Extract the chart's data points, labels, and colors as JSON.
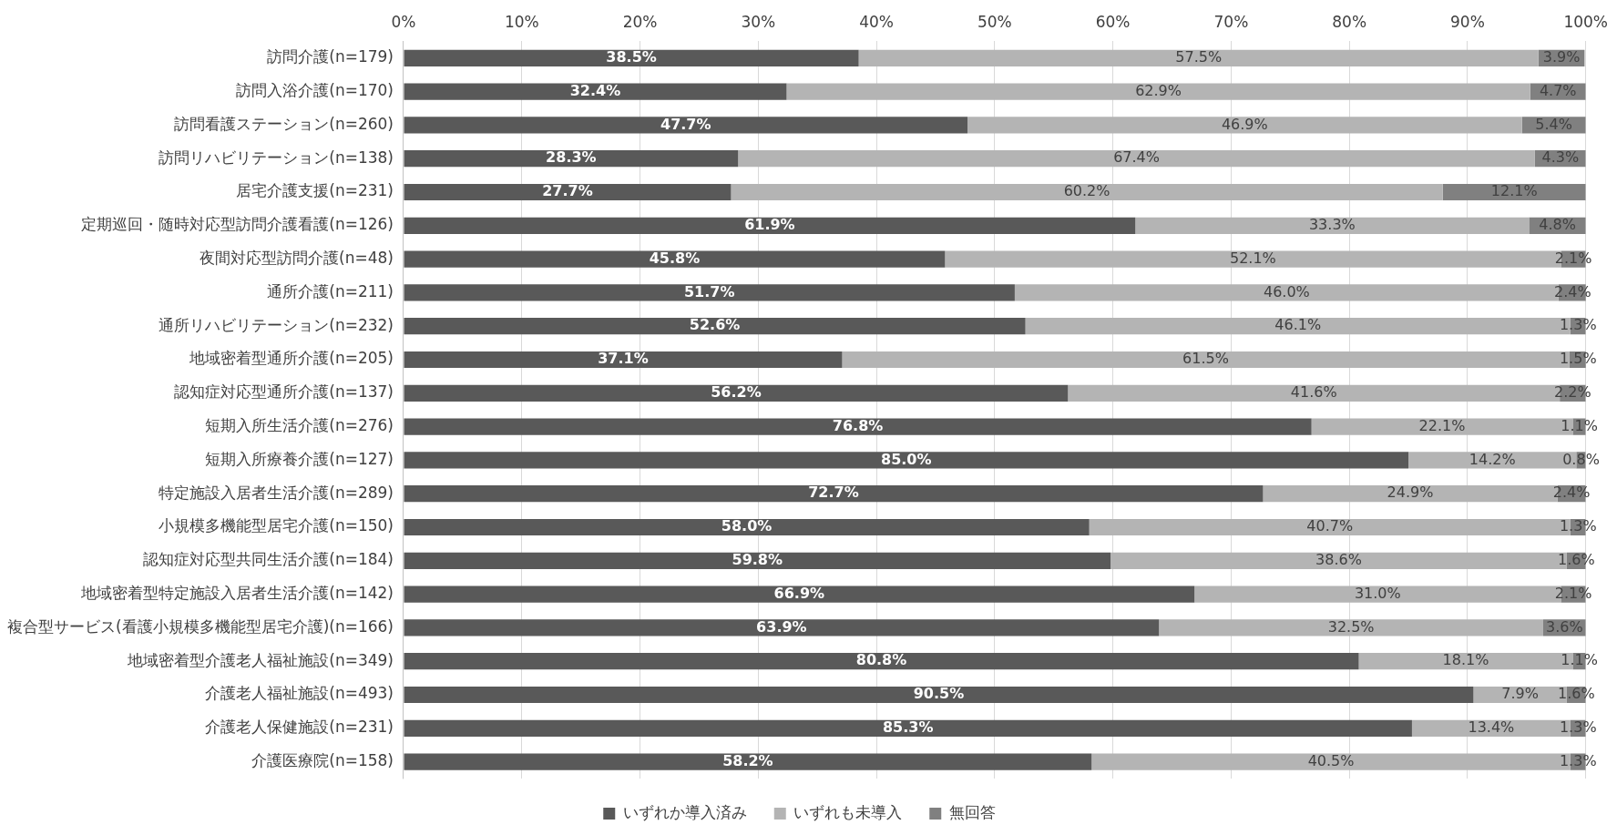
{
  "chart_data": {
    "type": "bar",
    "orientation": "horizontal",
    "stacked": true,
    "categories": [
      "訪問介護(n=179)",
      "訪問入浴介護(n=170)",
      "訪問看護ステーション(n=260)",
      "訪問リハビリテーション(n=138)",
      "居宅介護支援(n=231)",
      "定期巡回・随時対応型訪問介護看護(n=126)",
      "夜間対応型訪問介護(n=48)",
      "通所介護(n=211)",
      "通所リハビリテーション(n=232)",
      "地域密着型通所介護(n=205)",
      "認知症対応型通所介護(n=137)",
      "短期入所生活介護(n=276)",
      "短期入所療養介護(n=127)",
      "特定施設入居者生活介護(n=289)",
      "小規模多機能型居宅介護(n=150)",
      "認知症対応型共同生活介護(n=184)",
      "地域密着型特定施設入居者生活介護(n=142)",
      "複合型サービス(看護小規模多機能型居宅介護)(n=166)",
      "地域密着型介護老人福祉施設(n=349)",
      "介護老人福祉施設(n=493)",
      "介護老人保健施設(n=231)",
      "介護医療院(n=158)"
    ],
    "series": [
      {
        "name": "いずれか導入済み",
        "color": "#595959",
        "values": [
          38.5,
          32.4,
          47.7,
          28.3,
          27.7,
          61.9,
          45.8,
          51.7,
          52.6,
          37.1,
          56.2,
          76.8,
          85.0,
          72.7,
          58.0,
          59.8,
          66.9,
          63.9,
          80.8,
          90.5,
          85.3,
          58.2
        ],
        "value_labels": [
          "38.5%",
          "32.4%",
          "47.7%",
          "28.3%",
          "27.7%",
          "61.9%",
          "45.8%",
          "51.7%",
          "52.6%",
          "37.1%",
          "56.2%",
          "76.8%",
          "85.0%",
          "72.7%",
          "58.0%",
          "59.8%",
          "66.9%",
          "63.9%",
          "80.8%",
          "90.5%",
          "85.3%",
          "58.2%"
        ]
      },
      {
        "name": "いずれも未導入",
        "color": "#b4b4b4",
        "values": [
          57.5,
          62.9,
          46.9,
          67.4,
          60.2,
          33.3,
          52.1,
          46.0,
          46.1,
          61.5,
          41.6,
          22.1,
          14.2,
          24.9,
          40.7,
          38.6,
          31.0,
          32.5,
          18.1,
          7.9,
          13.4,
          40.5
        ],
        "value_labels": [
          "57.5%",
          "62.9%",
          "46.9%",
          "67.4%",
          "60.2%",
          "33.3%",
          "52.1%",
          "46.0%",
          "46.1%",
          "61.5%",
          "41.6%",
          "22.1%",
          "14.2%",
          "24.9%",
          "40.7%",
          "38.6%",
          "31.0%",
          "32.5%",
          "18.1%",
          "7.9%",
          "13.4%",
          "40.5%"
        ]
      },
      {
        "name": "無回答",
        "color": "#808080",
        "values": [
          3.9,
          4.7,
          5.4,
          4.3,
          12.1,
          4.8,
          2.1,
          2.4,
          1.3,
          1.5,
          2.2,
          1.1,
          0.8,
          2.4,
          1.3,
          1.6,
          2.1,
          3.6,
          1.1,
          1.6,
          1.3,
          1.3
        ],
        "value_labels": [
          "3.9%",
          "4.7%",
          "5.4%",
          "4.3%",
          "12.1%",
          "4.8%",
          "2.1%",
          "2.4%",
          "1.3%",
          "1.5%",
          "2.2%",
          "1.1%",
          "0.8%",
          "2.4%",
          "1.3%",
          "1.6%",
          "2.1%",
          "3.6%",
          "1.1%",
          "1.6%",
          "1.3%",
          "1.3%"
        ]
      }
    ],
    "xlim": [
      0,
      100
    ],
    "xticks": [
      {
        "value": 0,
        "label": "0%"
      },
      {
        "value": 10,
        "label": "10%"
      },
      {
        "value": 20,
        "label": "20%"
      },
      {
        "value": 30,
        "label": "30%"
      },
      {
        "value": 40,
        "label": "40%"
      },
      {
        "value": 50,
        "label": "50%"
      },
      {
        "value": 60,
        "label": "60%"
      },
      {
        "value": 70,
        "label": "70%"
      },
      {
        "value": 80,
        "label": "80%"
      },
      {
        "value": 90,
        "label": "90%"
      },
      {
        "value": 100,
        "label": "100%"
      }
    ],
    "grid": "x",
    "legend": "bottom"
  }
}
